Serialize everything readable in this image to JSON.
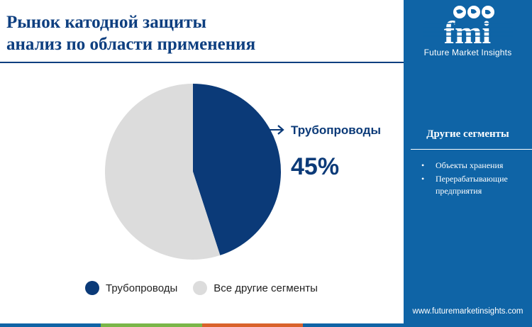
{
  "header": {
    "title_line1": "Рынок катодной защиты",
    "title_line2": "анализ по области применения"
  },
  "chart_data": {
    "type": "pie",
    "title": "Рынок катодной защиты анализ по области применения",
    "categories": [
      "Трубопроводы",
      "Все другие сегменты"
    ],
    "values": [
      45,
      55
    ],
    "unit": "%",
    "colors": [
      "#0b3a78",
      "#dcdcdc"
    ],
    "callout": {
      "label": "Трубопроводы",
      "value": "45%"
    },
    "legend": [
      "Трубопроводы",
      "Все другие сегменты"
    ]
  },
  "sidebar": {
    "logo_text": "fmi",
    "brand": "Future Market Insights",
    "other_segments_title": "Другие сегменты",
    "other_segments": [
      "Объекты хранения",
      "Перерабатывающие предприятия"
    ],
    "website": "www.futuremarketinsights.com"
  },
  "colors": {
    "primary": "#0e3f80",
    "sidebar": "#0f64a6",
    "bar": [
      "#0f64a6",
      "#7ab648",
      "#d9622b",
      "#0f64a6"
    ]
  }
}
